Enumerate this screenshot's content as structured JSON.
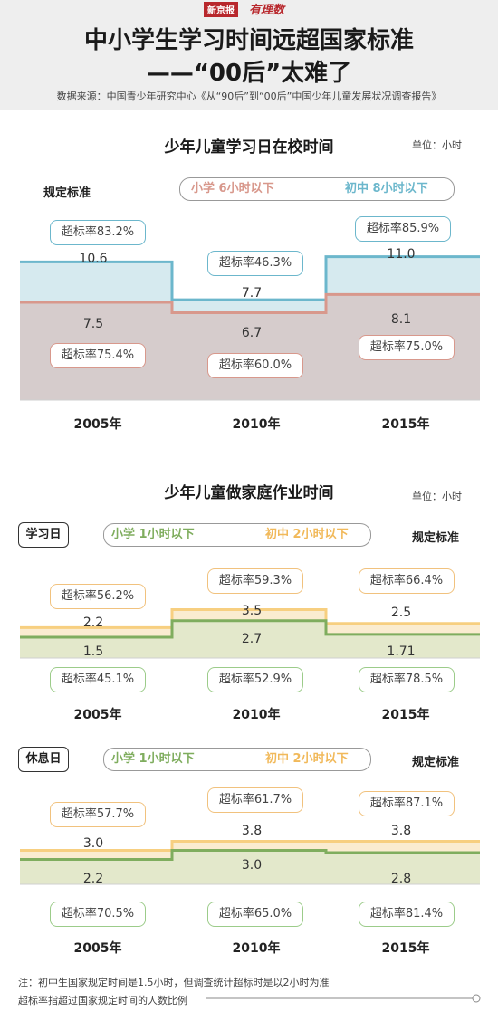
{
  "header": {
    "logo_text": "新京报",
    "logo_script": "有理数",
    "title_line1": "中小学生学习时间远超国家标准",
    "title_line2": "——“00后”太难了",
    "source": "数据来源：中国青少年研究中心《从“90后”到“00后”中国少年儿童发展状况调查报告》"
  },
  "colors": {
    "primary_line": "#6cb7cc",
    "primary_fill": "#d6eaef",
    "middle_line": "#d8988c",
    "middle_fill": "#d6cccc",
    "hw_primary_line": "#7fad5e",
    "hw_primary_fill": "#e3e8cb",
    "hw_middle_line": "#f7cf80",
    "hw_middle_fill": "#faecd0"
  },
  "section1": {
    "title": "少年儿童学习日在校时间",
    "unit": "单位：小时",
    "standard_label": "规定标准",
    "standard_primary": "小学   6小时以下",
    "standard_middle": "初中   8小时以下"
  },
  "section2": {
    "title": "少年儿童做家庭作业时间",
    "unit": "单位：小时",
    "standard_label": "规定标准",
    "standard_primary": "小学   1小时以下",
    "standard_middle": "初中   2小时以下",
    "panel1_label": "学习日",
    "panel2_label": "休息日"
  },
  "chart_data": [
    {
      "type": "area",
      "title": "少年儿童学习日在校时间",
      "unit": "单位：小时",
      "categories": [
        "2005年",
        "2010年",
        "2015年"
      ],
      "series": [
        {
          "name": "初中",
          "values": [
            10.6,
            7.7,
            11.0
          ],
          "over_rate": [
            "超标率83.2%",
            "超标率46.3%",
            "超标率85.9%"
          ]
        },
        {
          "name": "小学",
          "values": [
            7.5,
            6.7,
            8.1
          ],
          "over_rate": [
            "超标率75.4%",
            "超标率60.0%",
            "超标率75.0%"
          ]
        }
      ],
      "value_labels": {
        "middle": [
          "10.6",
          "7.7",
          "11.0"
        ],
        "primary": [
          "7.5",
          "6.7",
          "8.1"
        ]
      }
    },
    {
      "type": "area",
      "title": "学习日",
      "categories": [
        "2005年",
        "2010年",
        "2015年"
      ],
      "series": [
        {
          "name": "初中",
          "values": [
            2.2,
            3.5,
            2.5
          ],
          "over_rate": [
            "超标率56.2%",
            "超标率59.3%",
            "超标率66.4%"
          ]
        },
        {
          "name": "小学",
          "values": [
            1.5,
            2.7,
            1.71
          ],
          "over_rate": [
            "超标率45.1%",
            "超标率52.9%",
            "超标率78.5%"
          ]
        }
      ],
      "value_labels": {
        "middle": [
          "2.2",
          "3.5",
          "2.5"
        ],
        "primary": [
          "1.5",
          "2.7",
          "1.71"
        ]
      }
    },
    {
      "type": "area",
      "title": "休息日",
      "categories": [
        "2005年",
        "2010年",
        "2015年"
      ],
      "series": [
        {
          "name": "初中",
          "values": [
            3.0,
            3.8,
            3.8
          ],
          "over_rate": [
            "超标率57.7%",
            "超标率61.7%",
            "超标率87.1%"
          ]
        },
        {
          "name": "小学",
          "values": [
            2.2,
            3.0,
            2.8
          ],
          "over_rate": [
            "超标率70.5%",
            "超标率65.0%",
            "超标率81.4%"
          ]
        }
      ],
      "value_labels": {
        "middle": [
          "3.0",
          "3.8",
          "3.8"
        ],
        "primary": [
          "2.2",
          "3.0",
          "2.8"
        ]
      }
    }
  ],
  "notes": {
    "line1": "注：初中生国家规定时间是1.5小时，但调查统计超标时是以2小时为准",
    "line2": "超标率指超过国家规定时间的人数比例"
  }
}
